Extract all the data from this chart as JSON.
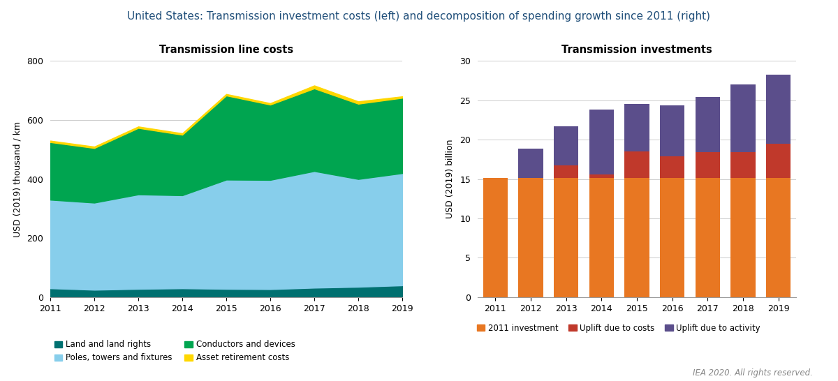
{
  "title": "United States: Transmission investment costs (left) and decomposition of spending growth since 2011 (right)",
  "title_fontsize": 11,
  "title_color": "#1F4E79",
  "left_title": "Transmission line costs",
  "right_title": "Transmission investments",
  "subtitle_fontsize": 10.5,
  "years": [
    2011,
    2012,
    2013,
    2014,
    2015,
    2016,
    2017,
    2018,
    2019
  ],
  "left_ylabel": "USD (2019) thousand / km",
  "left_ylim": [
    0,
    800
  ],
  "left_yticks": [
    0,
    200,
    400,
    600,
    800
  ],
  "land_rights": [
    30,
    25,
    28,
    30,
    28,
    27,
    32,
    35,
    40
  ],
  "poles_towers": [
    300,
    295,
    320,
    315,
    370,
    370,
    395,
    365,
    380
  ],
  "conductors": [
    195,
    185,
    225,
    205,
    285,
    255,
    280,
    255,
    255
  ],
  "asset_retirement": [
    5,
    5,
    5,
    5,
    5,
    5,
    10,
    8,
    5
  ],
  "land_color": "#007070",
  "poles_color": "#87CEEB",
  "conductors_color": "#00A550",
  "asset_color": "#FFD700",
  "right_ylabel": "USD (2019) billion",
  "right_ylim": [
    0,
    30
  ],
  "right_yticks": [
    0,
    5,
    10,
    15,
    20,
    25,
    30
  ],
  "invest_2011": [
    15.1,
    15.1,
    15.1,
    15.1,
    15.1,
    15.1,
    15.1,
    15.1,
    15.1
  ],
  "uplift_costs": [
    0,
    0,
    1.6,
    0.5,
    3.4,
    2.8,
    3.3,
    3.3,
    4.4
  ],
  "uplift_activity": [
    0,
    3.8,
    5.0,
    8.2,
    6.0,
    6.5,
    7.0,
    8.6,
    8.8
  ],
  "invest_color": "#E87722",
  "costs_color": "#C0392B",
  "activity_color": "#5B4E8B",
  "legend_left": [
    [
      "Land and land rights",
      "#007070"
    ],
    [
      "Conductors and devices",
      "#00A550"
    ],
    [
      "Poles, towers and fixtures",
      "#87CEEB"
    ],
    [
      "Asset retirement costs",
      "#FFD700"
    ]
  ],
  "legend_right": [
    [
      "2011 investment",
      "#E87722"
    ],
    [
      "Uplift due to costs",
      "#C0392B"
    ],
    [
      "Uplift due to activity",
      "#5B4E8B"
    ]
  ],
  "footer": "IEA 2020. All rights reserved.",
  "background_color": "#FFFFFF"
}
